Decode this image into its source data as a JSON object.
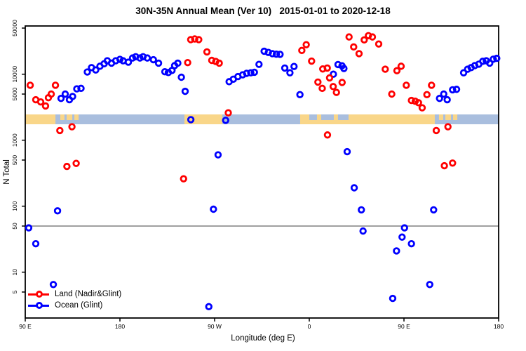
{
  "figure": {
    "title": "30N-35N Annual Mean (Ver 10)   2015-01-01 to 2020-12-18",
    "x_axis_label": "Longitude (deg E)",
    "y_axis_label": "N Total"
  },
  "legend": {
    "items": [
      {
        "label": "Land (Nadir&Glint)",
        "color": "#ff0000"
      },
      {
        "label": "Ocean (Glint)",
        "color": "#0000ff"
      }
    ]
  },
  "colors": {
    "land_points": "#ff0000",
    "ocean_points": "#0000ff",
    "map_land": "#f9d689",
    "map_ocean": "#a9bede",
    "reference_line": "#808080",
    "axis": "#000000",
    "background": "#ffffff"
  },
  "chart_data": {
    "type": "scatter",
    "title": "30N-35N Annual Mean (Ver 10)   2015-01-01 to 2020-12-18",
    "xlabel": "Longitude (deg E)",
    "ylabel": "N Total",
    "x_axis": {
      "note": "axis runs 90E eastward through 180, 90W, 0, 90E to 180; positions are degrees east of left edge (90E)",
      "tick_positions_deg": [
        0,
        90,
        180,
        270,
        360,
        450
      ],
      "tick_labels": [
        "90 E",
        "180",
        "90 W",
        "0",
        "90 E",
        "180"
      ],
      "range_deg": [
        0,
        450
      ]
    },
    "y_axis": {
      "scale": "log",
      "ticks": [
        5,
        10,
        50,
        100,
        500,
        1000,
        5000,
        10000,
        50000
      ],
      "range": [
        2,
        60000
      ]
    },
    "reference_line_y": 50,
    "map_strip": {
      "description": "land/ocean map band drawn across the plot near N=2000",
      "value_center": 2000,
      "land_segments_deg": [
        [
          0,
          28.7
        ],
        [
          151.3,
          187.3
        ],
        [
          261.3,
          389.3
        ]
      ],
      "island_segments_deg": [
        [
          33.3,
          37.3
        ],
        [
          39.3,
          44.7
        ],
        [
          46.7,
          50.7
        ],
        [
          393.3,
          397.3
        ],
        [
          399.3,
          404.7
        ],
        [
          406.7,
          410.7
        ]
      ],
      "sea_overlay_segments_deg": [
        [
          270,
          277.3
        ],
        [
          281.3,
          293.3
        ],
        [
          297.3,
          307.3
        ]
      ]
    },
    "series": [
      {
        "name": "Land (Nadir&Glint)",
        "color": "#ff0000",
        "points": [
          [
            4.7,
            6800
          ],
          [
            10,
            4100
          ],
          [
            14.7,
            3800
          ],
          [
            19.3,
            3300
          ],
          [
            22,
            4400
          ],
          [
            24.7,
            5000
          ],
          [
            28.7,
            6800
          ],
          [
            32.9,
            1400
          ],
          [
            39.6,
            400
          ],
          [
            44.4,
            1600
          ],
          [
            48.4,
            445
          ],
          [
            150.5,
            260
          ],
          [
            154.4,
            15000
          ],
          [
            157.3,
            33400
          ],
          [
            161.1,
            34200
          ],
          [
            164.9,
            33400
          ],
          [
            172.7,
            21800
          ],
          [
            177.3,
            16200
          ],
          [
            181.1,
            15600
          ],
          [
            184.4,
            14700
          ],
          [
            193,
            2600
          ],
          [
            262.9,
            22900
          ],
          [
            267.1,
            28000
          ],
          [
            272.2,
            15800
          ],
          [
            278.2,
            7600
          ],
          [
            282.3,
            6100
          ],
          [
            282.8,
            12000
          ],
          [
            287.1,
            12400
          ],
          [
            287.3,
            1200
          ],
          [
            289.3,
            8800
          ],
          [
            292.7,
            6500
          ],
          [
            295.8,
            5300
          ],
          [
            301.2,
            7500
          ],
          [
            307.8,
            36700
          ],
          [
            312.2,
            25900
          ],
          [
            317.3,
            20500
          ],
          [
            322.2,
            33100
          ],
          [
            326.2,
            38400
          ],
          [
            330,
            36700
          ],
          [
            336,
            28700
          ],
          [
            342.2,
            11900
          ],
          [
            348.4,
            5000
          ],
          [
            353.3,
            11300
          ],
          [
            357.3,
            13200
          ],
          [
            362.2,
            6800
          ],
          [
            367.1,
            4000
          ],
          [
            370.7,
            3900
          ],
          [
            373.8,
            3700
          ],
          [
            377.3,
            3100
          ],
          [
            381.8,
            4900
          ],
          [
            386.2,
            6800
          ],
          [
            390.7,
            1400
          ],
          [
            398.4,
            410
          ],
          [
            401.8,
            1600
          ],
          [
            406.2,
            450
          ]
        ]
      },
      {
        "name": "Ocean (Glint)",
        "color": "#0000ff",
        "points": [
          [
            3.3,
            47
          ],
          [
            10,
            27
          ],
          [
            26.7,
            6.5
          ],
          [
            30.7,
            85
          ],
          [
            34,
            4300
          ],
          [
            38,
            5000
          ],
          [
            42,
            4100
          ],
          [
            45,
            4600
          ],
          [
            49,
            6000
          ],
          [
            53,
            6100
          ],
          [
            59,
            10800
          ],
          [
            63,
            12600
          ],
          [
            67,
            11600
          ],
          [
            71,
            13200
          ],
          [
            75,
            14400
          ],
          [
            78,
            16000
          ],
          [
            82,
            14700
          ],
          [
            86,
            16000
          ],
          [
            90,
            16800
          ],
          [
            93,
            16000
          ],
          [
            98,
            15200
          ],
          [
            102,
            17600
          ],
          [
            105,
            18400
          ],
          [
            109,
            17600
          ],
          [
            112,
            18400
          ],
          [
            116,
            17600
          ],
          [
            121.8,
            16600
          ],
          [
            126.7,
            14700
          ],
          [
            132.7,
            10900
          ],
          [
            136,
            10600
          ],
          [
            139.5,
            11400
          ],
          [
            142,
            13500
          ],
          [
            145,
            14700
          ],
          [
            148.4,
            9000
          ],
          [
            152,
            5500
          ],
          [
            157.4,
            2050
          ],
          [
            174.5,
            3
          ],
          [
            178.9,
            90
          ],
          [
            183.3,
            600
          ],
          [
            190.5,
            2000
          ],
          [
            193.8,
            7700
          ],
          [
            197.8,
            8400
          ],
          [
            202.2,
            9200
          ],
          [
            206.7,
            9800
          ],
          [
            210.4,
            10300
          ],
          [
            214.4,
            10500
          ],
          [
            217.8,
            10700
          ],
          [
            222.2,
            14100
          ],
          [
            227.1,
            22300
          ],
          [
            231.1,
            21400
          ],
          [
            234.9,
            20500
          ],
          [
            238.7,
            20100
          ],
          [
            242.2,
            20000
          ],
          [
            246.7,
            12400
          ],
          [
            251.6,
            10500
          ],
          [
            255.5,
            13100
          ],
          [
            261.1,
            4900
          ],
          [
            292.9,
            10000
          ],
          [
            297.3,
            14000
          ],
          [
            301.1,
            13400
          ],
          [
            302.9,
            12200
          ],
          [
            306,
            670
          ],
          [
            312.7,
            190
          ],
          [
            319.5,
            88
          ],
          [
            321.1,
            42
          ],
          [
            349.3,
            4
          ],
          [
            352.9,
            21
          ],
          [
            358.2,
            34
          ],
          [
            360.5,
            47
          ],
          [
            367.1,
            27
          ],
          [
            384.5,
            6.5
          ],
          [
            388.2,
            88
          ],
          [
            393.8,
            4300
          ],
          [
            397.8,
            5000
          ],
          [
            401.1,
            4100
          ],
          [
            406.2,
            5800
          ],
          [
            410,
            5900
          ],
          [
            416.7,
            10500
          ],
          [
            420.5,
            11900
          ],
          [
            423.8,
            12600
          ],
          [
            427.3,
            13500
          ],
          [
            431.1,
            14200
          ],
          [
            434.9,
            15700
          ],
          [
            438.2,
            16000
          ],
          [
            441.5,
            14700
          ],
          [
            444.9,
            16900
          ],
          [
            448.2,
            17400
          ]
        ]
      }
    ]
  }
}
